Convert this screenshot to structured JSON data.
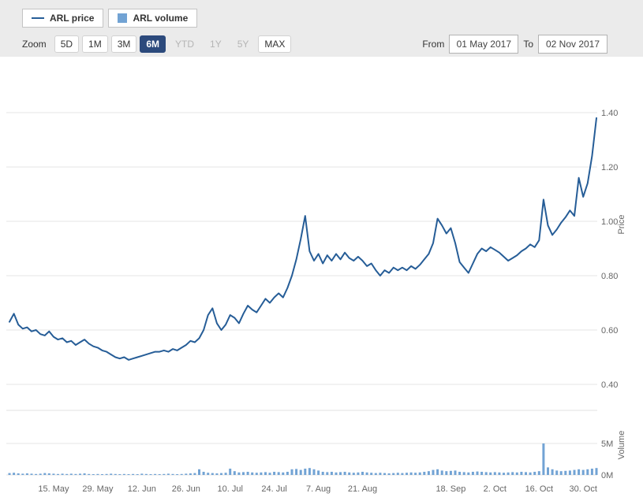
{
  "legend": {
    "price_label": "ARL price",
    "volume_label": "ARL volume"
  },
  "toolbar": {
    "zoom_label": "Zoom",
    "buttons": [
      {
        "label": "5D",
        "state": "normal"
      },
      {
        "label": "1M",
        "state": "normal"
      },
      {
        "label": "3M",
        "state": "normal"
      },
      {
        "label": "6M",
        "state": "selected"
      },
      {
        "label": "YTD",
        "state": "disabled"
      },
      {
        "label": "1Y",
        "state": "disabled"
      },
      {
        "label": "5Y",
        "state": "disabled"
      },
      {
        "label": "MAX",
        "state": "normal"
      }
    ],
    "from_label": "From",
    "from_value": "01 May 2017",
    "to_label": "To",
    "to_value": "02 Nov 2017"
  },
  "colors": {
    "price_line": "#265d97",
    "volume_bar": "#72a3d4",
    "grid": "#e6e6e6",
    "pane_divider": "#e0e0e0",
    "axis_text": "#666666",
    "selected_button_bg": "#2c4a7c"
  },
  "chart_data": {
    "type": "line",
    "title": "",
    "subtitle": "",
    "x_range": [
      "01 May 2017",
      "02 Nov 2017"
    ],
    "x_tick_labels": [
      "15. May",
      "29. May",
      "12. Jun",
      "26. Jun",
      "10. Jul",
      "24. Jul",
      "7. Aug",
      "21. Aug",
      "18. Sep",
      "2. Oct",
      "16. Oct",
      "30. Oct"
    ],
    "x_tick_indices": [
      10,
      20,
      30,
      40,
      50,
      60,
      70,
      80,
      100,
      110,
      120,
      130
    ],
    "price_axis": {
      "title": "Price",
      "side": "right",
      "ticks": [
        0.4,
        0.6,
        0.8,
        1.0,
        1.2,
        1.4
      ],
      "range": [
        0.35,
        1.45
      ]
    },
    "volume_axis": {
      "title": "Volume",
      "side": "right",
      "tick_labels": [
        "0M",
        "5M"
      ],
      "tick_values": [
        0,
        5
      ],
      "unit": "M",
      "range": [
        0,
        5.5
      ]
    },
    "grid": "horizontal",
    "legend_position": "top-left",
    "series": [
      {
        "name": "ARL price",
        "type": "line",
        "values": [
          0.63,
          0.66,
          0.62,
          0.605,
          0.61,
          0.595,
          0.6,
          0.585,
          0.58,
          0.595,
          0.575,
          0.565,
          0.57,
          0.555,
          0.56,
          0.545,
          0.555,
          0.565,
          0.55,
          0.54,
          0.535,
          0.525,
          0.52,
          0.51,
          0.5,
          0.495,
          0.5,
          0.49,
          0.495,
          0.5,
          0.505,
          0.51,
          0.515,
          0.52,
          0.52,
          0.525,
          0.52,
          0.53,
          0.525,
          0.535,
          0.545,
          0.56,
          0.555,
          0.57,
          0.6,
          0.655,
          0.68,
          0.625,
          0.6,
          0.62,
          0.655,
          0.645,
          0.625,
          0.66,
          0.69,
          0.675,
          0.665,
          0.69,
          0.715,
          0.7,
          0.72,
          0.735,
          0.72,
          0.755,
          0.8,
          0.86,
          0.935,
          1.02,
          0.89,
          0.855,
          0.88,
          0.845,
          0.875,
          0.855,
          0.88,
          0.86,
          0.885,
          0.865,
          0.855,
          0.87,
          0.855,
          0.835,
          0.845,
          0.82,
          0.8,
          0.82,
          0.81,
          0.83,
          0.82,
          0.83,
          0.82,
          0.835,
          0.825,
          0.84,
          0.86,
          0.88,
          0.92,
          1.01,
          0.985,
          0.955,
          0.975,
          0.92,
          0.85,
          0.83,
          0.81,
          0.845,
          0.88,
          0.9,
          0.89,
          0.905,
          0.895,
          0.885,
          0.87,
          0.855,
          0.865,
          0.875,
          0.89,
          0.9,
          0.915,
          0.905,
          0.93,
          1.08,
          0.985,
          0.95,
          0.97,
          0.995,
          1.015,
          1.04,
          1.02,
          1.16,
          1.09,
          1.14,
          1.24,
          1.38
        ]
      },
      {
        "name": "ARL volume",
        "type": "bar",
        "unit": "M",
        "values": [
          0.3,
          0.35,
          0.25,
          0.2,
          0.25,
          0.2,
          0.15,
          0.2,
          0.3,
          0.25,
          0.2,
          0.15,
          0.2,
          0.15,
          0.2,
          0.15,
          0.2,
          0.25,
          0.15,
          0.1,
          0.15,
          0.1,
          0.15,
          0.2,
          0.15,
          0.1,
          0.15,
          0.1,
          0.15,
          0.1,
          0.2,
          0.15,
          0.1,
          0.15,
          0.1,
          0.15,
          0.2,
          0.15,
          0.1,
          0.15,
          0.2,
          0.25,
          0.3,
          0.9,
          0.5,
          0.35,
          0.3,
          0.25,
          0.3,
          0.35,
          1.0,
          0.6,
          0.4,
          0.45,
          0.5,
          0.4,
          0.35,
          0.4,
          0.45,
          0.35,
          0.5,
          0.45,
          0.4,
          0.5,
          0.9,
          0.95,
          0.8,
          1.0,
          1.1,
          0.9,
          0.7,
          0.5,
          0.45,
          0.5,
          0.4,
          0.45,
          0.5,
          0.4,
          0.35,
          0.4,
          0.5,
          0.4,
          0.35,
          0.3,
          0.35,
          0.3,
          0.25,
          0.3,
          0.35,
          0.3,
          0.35,
          0.4,
          0.35,
          0.4,
          0.5,
          0.6,
          0.8,
          0.9,
          0.7,
          0.6,
          0.65,
          0.7,
          0.5,
          0.45,
          0.4,
          0.5,
          0.55,
          0.5,
          0.45,
          0.4,
          0.45,
          0.4,
          0.35,
          0.4,
          0.45,
          0.4,
          0.5,
          0.45,
          0.4,
          0.5,
          0.6,
          5.0,
          1.2,
          0.9,
          0.7,
          0.6,
          0.65,
          0.7,
          0.8,
          0.9,
          0.8,
          0.9,
          1.0,
          1.1
        ]
      }
    ]
  }
}
